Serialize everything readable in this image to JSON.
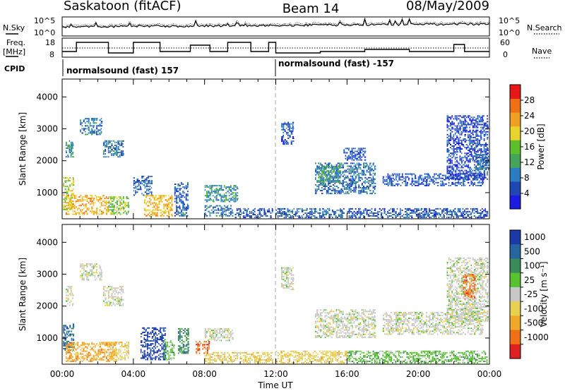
{
  "header": {
    "station": "Saskatoon (fitACF)",
    "beam": "Beam 14",
    "date": "08/May/2009"
  },
  "side_labels": {
    "nsky": "N.Sky",
    "nsearch": "N.Search",
    "freq_line1": "Freq.",
    "freq_line2": "[MHz]",
    "nave": "Nave",
    "cpid": "CPID"
  },
  "noise_axis": {
    "left_top": "10^5",
    "left_bottom": "10^0",
    "right_top": "10^5",
    "right_bottom": "10^0"
  },
  "freq_axis": {
    "left_ticks": [
      "18",
      "8"
    ],
    "right_ticks": [
      "60",
      "0"
    ]
  },
  "cpid": {
    "segments": [
      {
        "label": "normalsound (fast) 157",
        "start_hour": 0
      },
      {
        "label": "normalsound (fast) -157",
        "start_hour": 12
      }
    ]
  },
  "colors": {
    "power_scale": [
      "#1c1ce0",
      "#2046b4",
      "#2a7dc0",
      "#45a35a",
      "#5fbe2c",
      "#e8d42a",
      "#f0a020",
      "#f07018",
      "#e81818"
    ],
    "velocity_scale": [
      "#1a3aa8",
      "#2566a0",
      "#3a8a5a",
      "#58c230",
      "#c8c8c8",
      "#e8d050",
      "#f0a828",
      "#f07018",
      "#e02020"
    ]
  },
  "chart_data": [
    {
      "type": "heatmap",
      "panel": "power",
      "xlabel": "",
      "ylabel": "Slant Range [km]",
      "x_ticks": [
        "00:00",
        "04:00",
        "08:00",
        "12:00",
        "16:00",
        "20:00",
        "00:00"
      ],
      "y_ticks": [
        1000,
        2000,
        3000,
        4000
      ],
      "xlim": [
        0,
        24
      ],
      "ylim": [
        180,
        4560
      ],
      "colorbar_label": "Power [dB]",
      "colorbar_ticks": [
        4,
        8,
        12,
        16,
        20,
        24,
        28
      ],
      "colorbar_range": [
        0,
        32
      ],
      "regions": [
        {
          "t0": 0.05,
          "t1": 0.6,
          "r0": 450,
          "r1": 1450,
          "p": 18
        },
        {
          "t0": 0.2,
          "t1": 2.6,
          "r0": 300,
          "r1": 900,
          "p": 22
        },
        {
          "t0": 2.6,
          "t1": 3.7,
          "r0": 300,
          "r1": 850,
          "p": 16
        },
        {
          "t0": 0.2,
          "t1": 0.6,
          "r0": 2100,
          "r1": 2600,
          "p": 10
        },
        {
          "t0": 1.0,
          "t1": 2.2,
          "r0": 2800,
          "r1": 3300,
          "p": 8
        },
        {
          "t0": 2.3,
          "t1": 3.4,
          "r0": 2100,
          "r1": 2600,
          "p": 8
        },
        {
          "t0": 4.0,
          "t1": 5.0,
          "r0": 900,
          "r1": 1500,
          "p": 7
        },
        {
          "t0": 4.6,
          "t1": 6.2,
          "r0": 250,
          "r1": 900,
          "p": 22
        },
        {
          "t0": 6.3,
          "t1": 7.1,
          "r0": 250,
          "r1": 1300,
          "p": 7
        },
        {
          "t0": 8.0,
          "t1": 9.8,
          "r0": 700,
          "r1": 1200,
          "p": 11
        },
        {
          "t0": 8.0,
          "t1": 9.6,
          "r0": 250,
          "r1": 600,
          "p": 8
        },
        {
          "t0": 9.7,
          "t1": 11.8,
          "r0": 200,
          "r1": 500,
          "p": 6
        },
        {
          "t0": 12.0,
          "t1": 15.8,
          "r0": 200,
          "r1": 500,
          "p": 7
        },
        {
          "t0": 12.3,
          "t1": 13.0,
          "r0": 2500,
          "r1": 3200,
          "p": 6
        },
        {
          "t0": 14.2,
          "t1": 17.6,
          "r0": 950,
          "r1": 1900,
          "p": 8
        },
        {
          "t0": 14.4,
          "t1": 15.6,
          "r0": 1300,
          "r1": 1800,
          "p": 12
        },
        {
          "t0": 15.8,
          "t1": 17.0,
          "r0": 2000,
          "r1": 2400,
          "p": 6
        },
        {
          "t0": 18.0,
          "t1": 23.6,
          "r0": 1200,
          "r1": 1600,
          "p": 6
        },
        {
          "t0": 16.0,
          "t1": 23.9,
          "r0": 200,
          "r1": 500,
          "p": 6
        },
        {
          "t0": 21.6,
          "t1": 23.9,
          "r0": 1400,
          "r1": 3400,
          "p": 5
        },
        {
          "t0": 23.2,
          "t1": 24.0,
          "r0": 1700,
          "r1": 2200,
          "p": 9
        }
      ]
    },
    {
      "type": "heatmap",
      "panel": "velocity",
      "xlabel": "Time UT",
      "ylabel": "Slant Range [km]",
      "x_ticks": [
        "00:00",
        "04:00",
        "08:00",
        "12:00",
        "16:00",
        "20:00",
        "00:00"
      ],
      "y_ticks": [
        1000,
        2000,
        3000,
        4000
      ],
      "xlim": [
        0,
        24
      ],
      "ylim": [
        180,
        4560
      ],
      "colorbar_label": "Velocity [m s⁻¹]",
      "colorbar_ticks": [
        "1000",
        "500",
        "100",
        "25",
        "-25",
        "-100",
        "-500",
        "-1000"
      ],
      "regions": [
        {
          "t0": 0.05,
          "t1": 0.6,
          "r0": 600,
          "r1": 1450,
          "c": 1
        },
        {
          "t0": 0.2,
          "t1": 3.0,
          "r0": 250,
          "r1": 850,
          "c": 6
        },
        {
          "t0": 2.6,
          "t1": 3.7,
          "r0": 300,
          "r1": 850,
          "c": 5
        },
        {
          "t0": 0.2,
          "t1": 0.6,
          "r0": 2000,
          "r1": 2600,
          "c": 4
        },
        {
          "t0": 1.0,
          "t1": 2.2,
          "r0": 2800,
          "r1": 3300,
          "c": 4
        },
        {
          "t0": 2.3,
          "t1": 3.4,
          "r0": 2000,
          "r1": 2600,
          "c": 4
        },
        {
          "t0": 4.4,
          "t1": 5.8,
          "r0": 300,
          "r1": 1300,
          "c": 0
        },
        {
          "t0": 5.7,
          "t1": 6.3,
          "r0": 300,
          "r1": 900,
          "c": 3
        },
        {
          "t0": 6.5,
          "t1": 7.1,
          "r0": 500,
          "r1": 1300,
          "c": 2
        },
        {
          "t0": 7.5,
          "t1": 8.3,
          "r0": 500,
          "r1": 900,
          "c": 7
        },
        {
          "t0": 8.0,
          "t1": 9.6,
          "r0": 900,
          "r1": 1300,
          "c": 4
        },
        {
          "t0": 8.0,
          "t1": 11.8,
          "r0": 200,
          "r1": 550,
          "c": 5
        },
        {
          "t0": 12.0,
          "t1": 16.0,
          "r0": 200,
          "r1": 600,
          "c": 5
        },
        {
          "t0": 16.0,
          "t1": 23.9,
          "r0": 200,
          "r1": 600,
          "c": 3
        },
        {
          "t0": 12.3,
          "t1": 13.0,
          "r0": 2500,
          "r1": 3200,
          "c": 4
        },
        {
          "t0": 14.2,
          "t1": 17.6,
          "r0": 1000,
          "r1": 1900,
          "c": 4
        },
        {
          "t0": 18.0,
          "t1": 23.6,
          "r0": 1100,
          "r1": 1800,
          "c": 4
        },
        {
          "t0": 21.6,
          "t1": 23.9,
          "r0": 1500,
          "r1": 3500,
          "c": 4
        },
        {
          "t0": 22.5,
          "t1": 23.2,
          "r0": 2200,
          "r1": 3000,
          "c": 7
        }
      ]
    }
  ]
}
